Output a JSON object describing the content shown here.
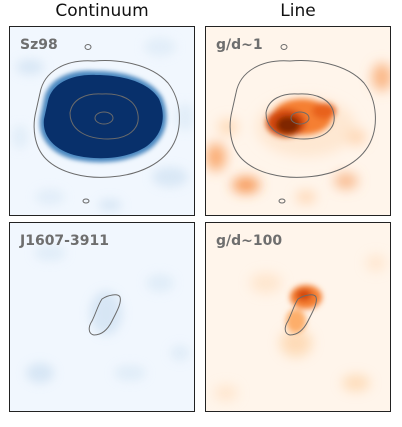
{
  "columns": {
    "left": "Continuum",
    "right": "Line"
  },
  "panels": {
    "top_left": {
      "label": "Sz98"
    },
    "top_right": {
      "label": "g/d~1"
    },
    "bottom_left": {
      "label": "J1607-3911"
    },
    "bottom_right": {
      "label": "g/d~100"
    }
  },
  "colors": {
    "continuum_dark": "#08306b",
    "continuum_mid": "#4a87c0",
    "continuum_bg": "#f1f7fe",
    "line_dark": "#7f2704",
    "line_mid": "#e8621d",
    "line_bg": "#fff5eb",
    "contour": "#6b6b6b"
  }
}
